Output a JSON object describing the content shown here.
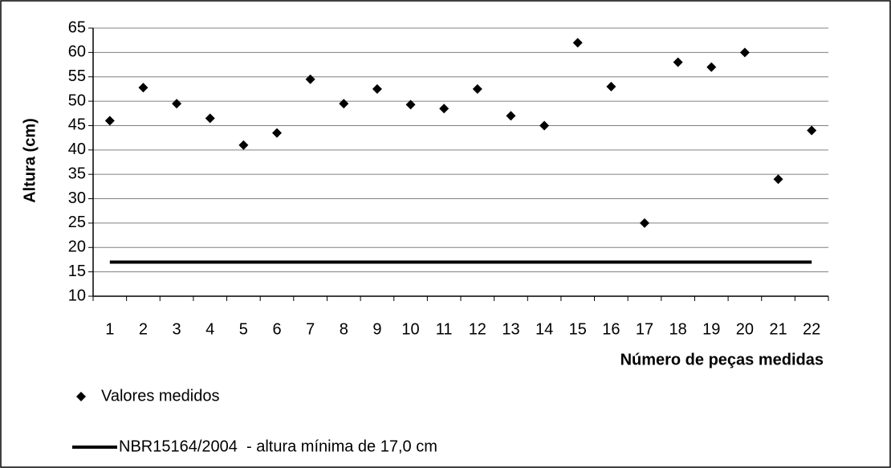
{
  "chart_data": {
    "type": "line",
    "x_label": "Número de peças medidas",
    "y_label": "Altura (cm)",
    "categories": [
      "1",
      "2",
      "3",
      "4",
      "5",
      "6",
      "7",
      "8",
      "9",
      "10",
      "11",
      "12",
      "13",
      "14",
      "15",
      "16",
      "17",
      "18",
      "19",
      "20",
      "21",
      "22"
    ],
    "series": [
      {
        "name": "Valores medidos",
        "color": "#000000",
        "style": "markers",
        "values": [
          46,
          52.8,
          49.5,
          46.5,
          41,
          43.5,
          54.5,
          49.5,
          52.5,
          49.3,
          48.5,
          52.5,
          47,
          45,
          62,
          53,
          25,
          58,
          57,
          60,
          34,
          44
        ]
      },
      {
        "name": "NBR15164/2004  - altura mínima de 17,0 cm",
        "color": "#000000",
        "style": "line",
        "values": [
          17,
          17,
          17,
          17,
          17,
          17,
          17,
          17,
          17,
          17,
          17,
          17,
          17,
          17,
          17,
          17,
          17,
          17,
          17,
          17,
          17,
          17
        ]
      }
    ],
    "ylim": [
      10,
      65
    ],
    "yticks": [
      10,
      15,
      20,
      25,
      30,
      35,
      40,
      45,
      50,
      55,
      60,
      65
    ],
    "grid": true,
    "legend": "bottom-left"
  }
}
